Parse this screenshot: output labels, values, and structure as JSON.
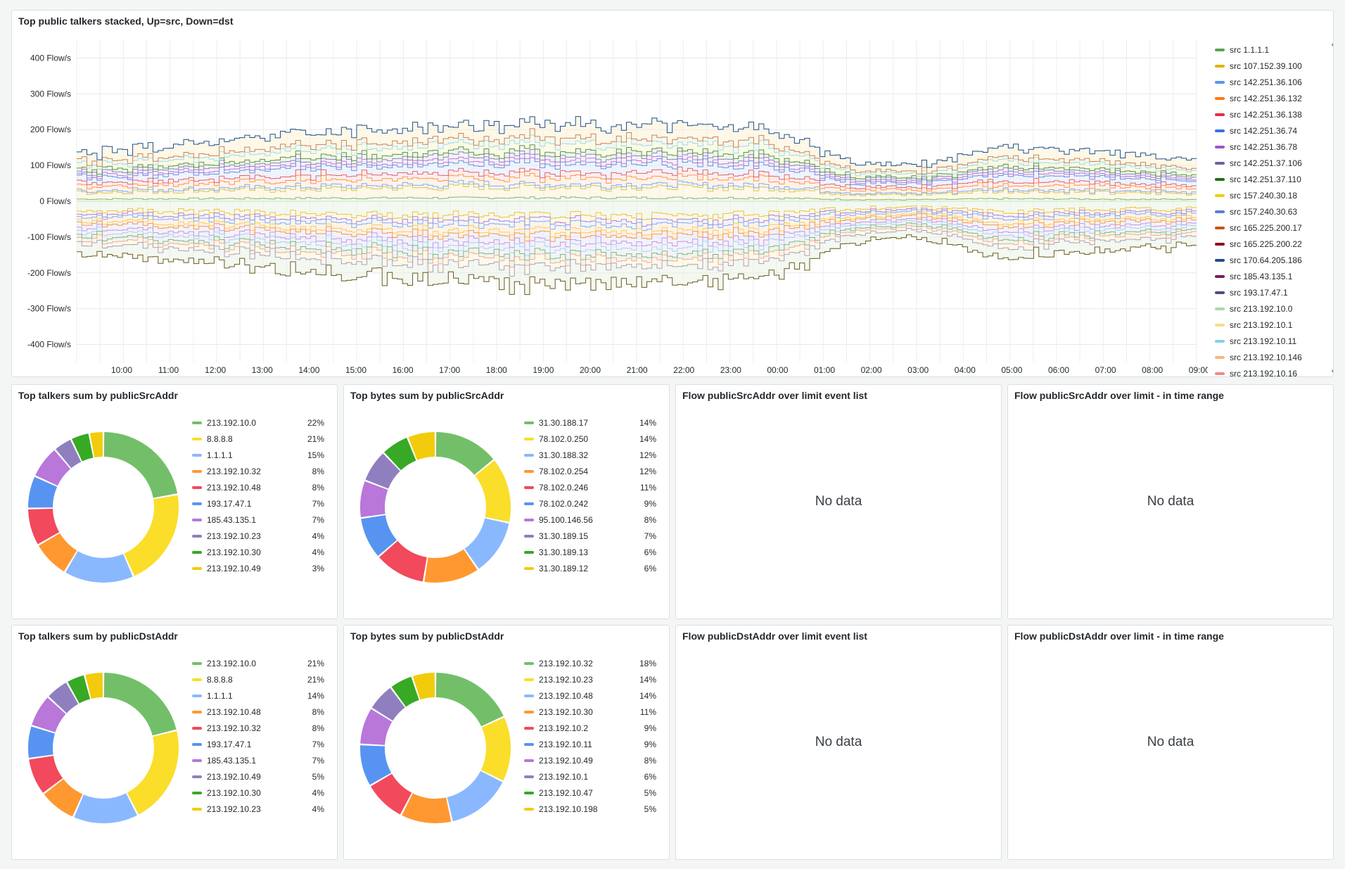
{
  "timeseries": {
    "title": "Top public talkers stacked, Up=src, Down=dst",
    "y_ticks": [
      "400 Flow/s",
      "300 Flow/s",
      "200 Flow/s",
      "100 Flow/s",
      "0 Flow/s",
      "-100 Flow/s",
      "-200 Flow/s",
      "-300 Flow/s",
      "-400 Flow/s"
    ],
    "x_ticks": [
      "10:00",
      "11:00",
      "12:00",
      "13:00",
      "14:00",
      "15:00",
      "16:00",
      "17:00",
      "18:00",
      "19:00",
      "20:00",
      "21:00",
      "22:00",
      "23:00",
      "00:00",
      "01:00",
      "02:00",
      "03:00",
      "04:00",
      "05:00",
      "06:00",
      "07:00",
      "08:00",
      "09:00"
    ],
    "legend": [
      {
        "label": "src 1.1.1.1",
        "color": "#56a64b"
      },
      {
        "label": "src 107.152.39.100",
        "color": "#e0b400"
      },
      {
        "label": "src 142.251.36.106",
        "color": "#5794f2"
      },
      {
        "label": "src 142.251.36.132",
        "color": "#ff780a"
      },
      {
        "label": "src 142.251.36.138",
        "color": "#e02f44"
      },
      {
        "label": "src 142.251.36.74",
        "color": "#3274d9"
      },
      {
        "label": "src 142.251.36.78",
        "color": "#a352cc"
      },
      {
        "label": "src 142.251.37.106",
        "color": "#6e5fa6"
      },
      {
        "label": "src 142.251.37.110",
        "color": "#19730e"
      },
      {
        "label": "src 157.240.30.18",
        "color": "#f2cc0c"
      },
      {
        "label": "src 157.240.30.63",
        "color": "#5b7fd4"
      },
      {
        "label": "src 165.225.200.17",
        "color": "#c4561a"
      },
      {
        "label": "src 165.225.200.22",
        "color": "#8f0d16"
      },
      {
        "label": "src 170.64.205.186",
        "color": "#1f4e8c"
      },
      {
        "label": "src 185.43.135.1",
        "color": "#7c1a5e"
      },
      {
        "label": "src 193.17.47.1",
        "color": "#4d4f80"
      },
      {
        "label": "src 213.192.10.0",
        "color": "#a9dba3"
      },
      {
        "label": "src 213.192.10.1",
        "color": "#f5dc89"
      },
      {
        "label": "src 213.192.10.11",
        "color": "#7fd3e8"
      },
      {
        "label": "src 213.192.10.146",
        "color": "#ffb57a"
      },
      {
        "label": "src 213.192.10.16",
        "color": "#f28a8a"
      }
    ]
  },
  "panels": {
    "src_talkers": {
      "title": "Top talkers sum by publicSrcAddr",
      "items": [
        {
          "label": "213.192.10.0",
          "pct": "22%",
          "value": 22,
          "color": "#73bf69"
        },
        {
          "label": "8.8.8.8",
          "pct": "21%",
          "value": 21,
          "color": "#fade2a"
        },
        {
          "label": "1.1.1.1",
          "pct": "15%",
          "value": 15,
          "color": "#8ab8ff"
        },
        {
          "label": "213.192.10.32",
          "pct": "8%",
          "value": 8,
          "color": "#ff9830"
        },
        {
          "label": "213.192.10.48",
          "pct": "8%",
          "value": 8,
          "color": "#f2495c"
        },
        {
          "label": "193.17.47.1",
          "pct": "7%",
          "value": 7,
          "color": "#5794f2"
        },
        {
          "label": "185.43.135.1",
          "pct": "7%",
          "value": 7,
          "color": "#b877d9"
        },
        {
          "label": "213.192.10.23",
          "pct": "4%",
          "value": 4,
          "color": "#8f7fbf"
        },
        {
          "label": "213.192.10.30",
          "pct": "4%",
          "value": 4,
          "color": "#37a925"
        },
        {
          "label": "213.192.10.49",
          "pct": "3%",
          "value": 3,
          "color": "#f2cc0c"
        }
      ]
    },
    "src_bytes": {
      "title": "Top bytes sum by publicSrcAddr",
      "items": [
        {
          "label": "31.30.188.17",
          "pct": "14%",
          "value": 14,
          "color": "#73bf69"
        },
        {
          "label": "78.102.0.250",
          "pct": "14%",
          "value": 14,
          "color": "#fade2a"
        },
        {
          "label": "31.30.188.32",
          "pct": "12%",
          "value": 12,
          "color": "#8ab8ff"
        },
        {
          "label": "78.102.0.254",
          "pct": "12%",
          "value": 12,
          "color": "#ff9830"
        },
        {
          "label": "78.102.0.246",
          "pct": "11%",
          "value": 11,
          "color": "#f2495c"
        },
        {
          "label": "78.102.0.242",
          "pct": "9%",
          "value": 9,
          "color": "#5794f2"
        },
        {
          "label": "95.100.146.56",
          "pct": "8%",
          "value": 8,
          "color": "#b877d9"
        },
        {
          "label": "31.30.189.15",
          "pct": "7%",
          "value": 7,
          "color": "#8f7fbf"
        },
        {
          "label": "31.30.189.13",
          "pct": "6%",
          "value": 6,
          "color": "#37a925"
        },
        {
          "label": "31.30.189.12",
          "pct": "6%",
          "value": 6,
          "color": "#f2cc0c"
        }
      ]
    },
    "src_event_list": {
      "title": "Flow publicSrcAddr over limit event list",
      "nodata": "No data"
    },
    "src_time_range": {
      "title": "Flow publicSrcAddr over limit - in time range",
      "nodata": "No data"
    },
    "dst_talkers": {
      "title": "Top talkers sum by publicDstAddr",
      "items": [
        {
          "label": "213.192.10.0",
          "pct": "21%",
          "value": 21,
          "color": "#73bf69"
        },
        {
          "label": "8.8.8.8",
          "pct": "21%",
          "value": 21,
          "color": "#fade2a"
        },
        {
          "label": "1.1.1.1",
          "pct": "14%",
          "value": 14,
          "color": "#8ab8ff"
        },
        {
          "label": "213.192.10.48",
          "pct": "8%",
          "value": 8,
          "color": "#ff9830"
        },
        {
          "label": "213.192.10.32",
          "pct": "8%",
          "value": 8,
          "color": "#f2495c"
        },
        {
          "label": "193.17.47.1",
          "pct": "7%",
          "value": 7,
          "color": "#5794f2"
        },
        {
          "label": "185.43.135.1",
          "pct": "7%",
          "value": 7,
          "color": "#b877d9"
        },
        {
          "label": "213.192.10.49",
          "pct": "5%",
          "value": 5,
          "color": "#8f7fbf"
        },
        {
          "label": "213.192.10.30",
          "pct": "4%",
          "value": 4,
          "color": "#37a925"
        },
        {
          "label": "213.192.10.23",
          "pct": "4%",
          "value": 4,
          "color": "#f2cc0c"
        }
      ]
    },
    "dst_bytes": {
      "title": "Top bytes sum by publicDstAddr",
      "items": [
        {
          "label": "213.192.10.32",
          "pct": "18%",
          "value": 18,
          "color": "#73bf69"
        },
        {
          "label": "213.192.10.23",
          "pct": "14%",
          "value": 14,
          "color": "#fade2a"
        },
        {
          "label": "213.192.10.48",
          "pct": "14%",
          "value": 14,
          "color": "#8ab8ff"
        },
        {
          "label": "213.192.10.30",
          "pct": "11%",
          "value": 11,
          "color": "#ff9830"
        },
        {
          "label": "213.192.10.2",
          "pct": "9%",
          "value": 9,
          "color": "#f2495c"
        },
        {
          "label": "213.192.10.11",
          "pct": "9%",
          "value": 9,
          "color": "#5794f2"
        },
        {
          "label": "213.192.10.49",
          "pct": "8%",
          "value": 8,
          "color": "#b877d9"
        },
        {
          "label": "213.192.10.1",
          "pct": "6%",
          "value": 6,
          "color": "#8f7fbf"
        },
        {
          "label": "213.192.10.47",
          "pct": "5%",
          "value": 5,
          "color": "#37a925"
        },
        {
          "label": "213.192.10.198",
          "pct": "5%",
          "value": 5,
          "color": "#f2cc0c"
        }
      ]
    },
    "dst_event_list": {
      "title": "Flow publicDstAddr over limit event list",
      "nodata": "No data"
    },
    "dst_time_range": {
      "title": "Flow publicDstAddr over limit - in time range",
      "nodata": "No data"
    }
  },
  "chart_data": [
    {
      "type": "area",
      "title": "Top public talkers stacked, Up=src, Down=dst",
      "ylabel": "",
      "ylim": [
        -400,
        400
      ]
    },
    {
      "type": "pie",
      "title": "Top talkers sum by publicSrcAddr",
      "categories": [
        "213.192.10.0",
        "8.8.8.8",
        "1.1.1.1",
        "213.192.10.32",
        "213.192.10.48",
        "193.17.47.1",
        "185.43.135.1",
        "213.192.10.23",
        "213.192.10.30",
        "213.192.10.49"
      ],
      "values": [
        22,
        21,
        15,
        8,
        8,
        7,
        7,
        4,
        4,
        3
      ]
    },
    {
      "type": "pie",
      "title": "Top bytes sum by publicSrcAddr",
      "categories": [
        "31.30.188.17",
        "78.102.0.250",
        "31.30.188.32",
        "78.102.0.254",
        "78.102.0.246",
        "78.102.0.242",
        "95.100.146.56",
        "31.30.189.15",
        "31.30.189.13",
        "31.30.189.12"
      ],
      "values": [
        14,
        14,
        12,
        12,
        11,
        9,
        8,
        7,
        6,
        6
      ]
    },
    {
      "type": "pie",
      "title": "Top talkers sum by publicDstAddr",
      "categories": [
        "213.192.10.0",
        "8.8.8.8",
        "1.1.1.1",
        "213.192.10.48",
        "213.192.10.32",
        "193.17.47.1",
        "185.43.135.1",
        "213.192.10.49",
        "213.192.10.30",
        "213.192.10.23"
      ],
      "values": [
        21,
        21,
        14,
        8,
        8,
        7,
        7,
        5,
        4,
        4
      ]
    },
    {
      "type": "pie",
      "title": "Top bytes sum by publicDstAddr",
      "categories": [
        "213.192.10.32",
        "213.192.10.23",
        "213.192.10.48",
        "213.192.10.30",
        "213.192.10.2",
        "213.192.10.11",
        "213.192.10.49",
        "213.192.10.1",
        "213.192.10.47",
        "213.192.10.198"
      ],
      "values": [
        18,
        14,
        14,
        11,
        9,
        9,
        8,
        6,
        5,
        5
      ]
    }
  ]
}
